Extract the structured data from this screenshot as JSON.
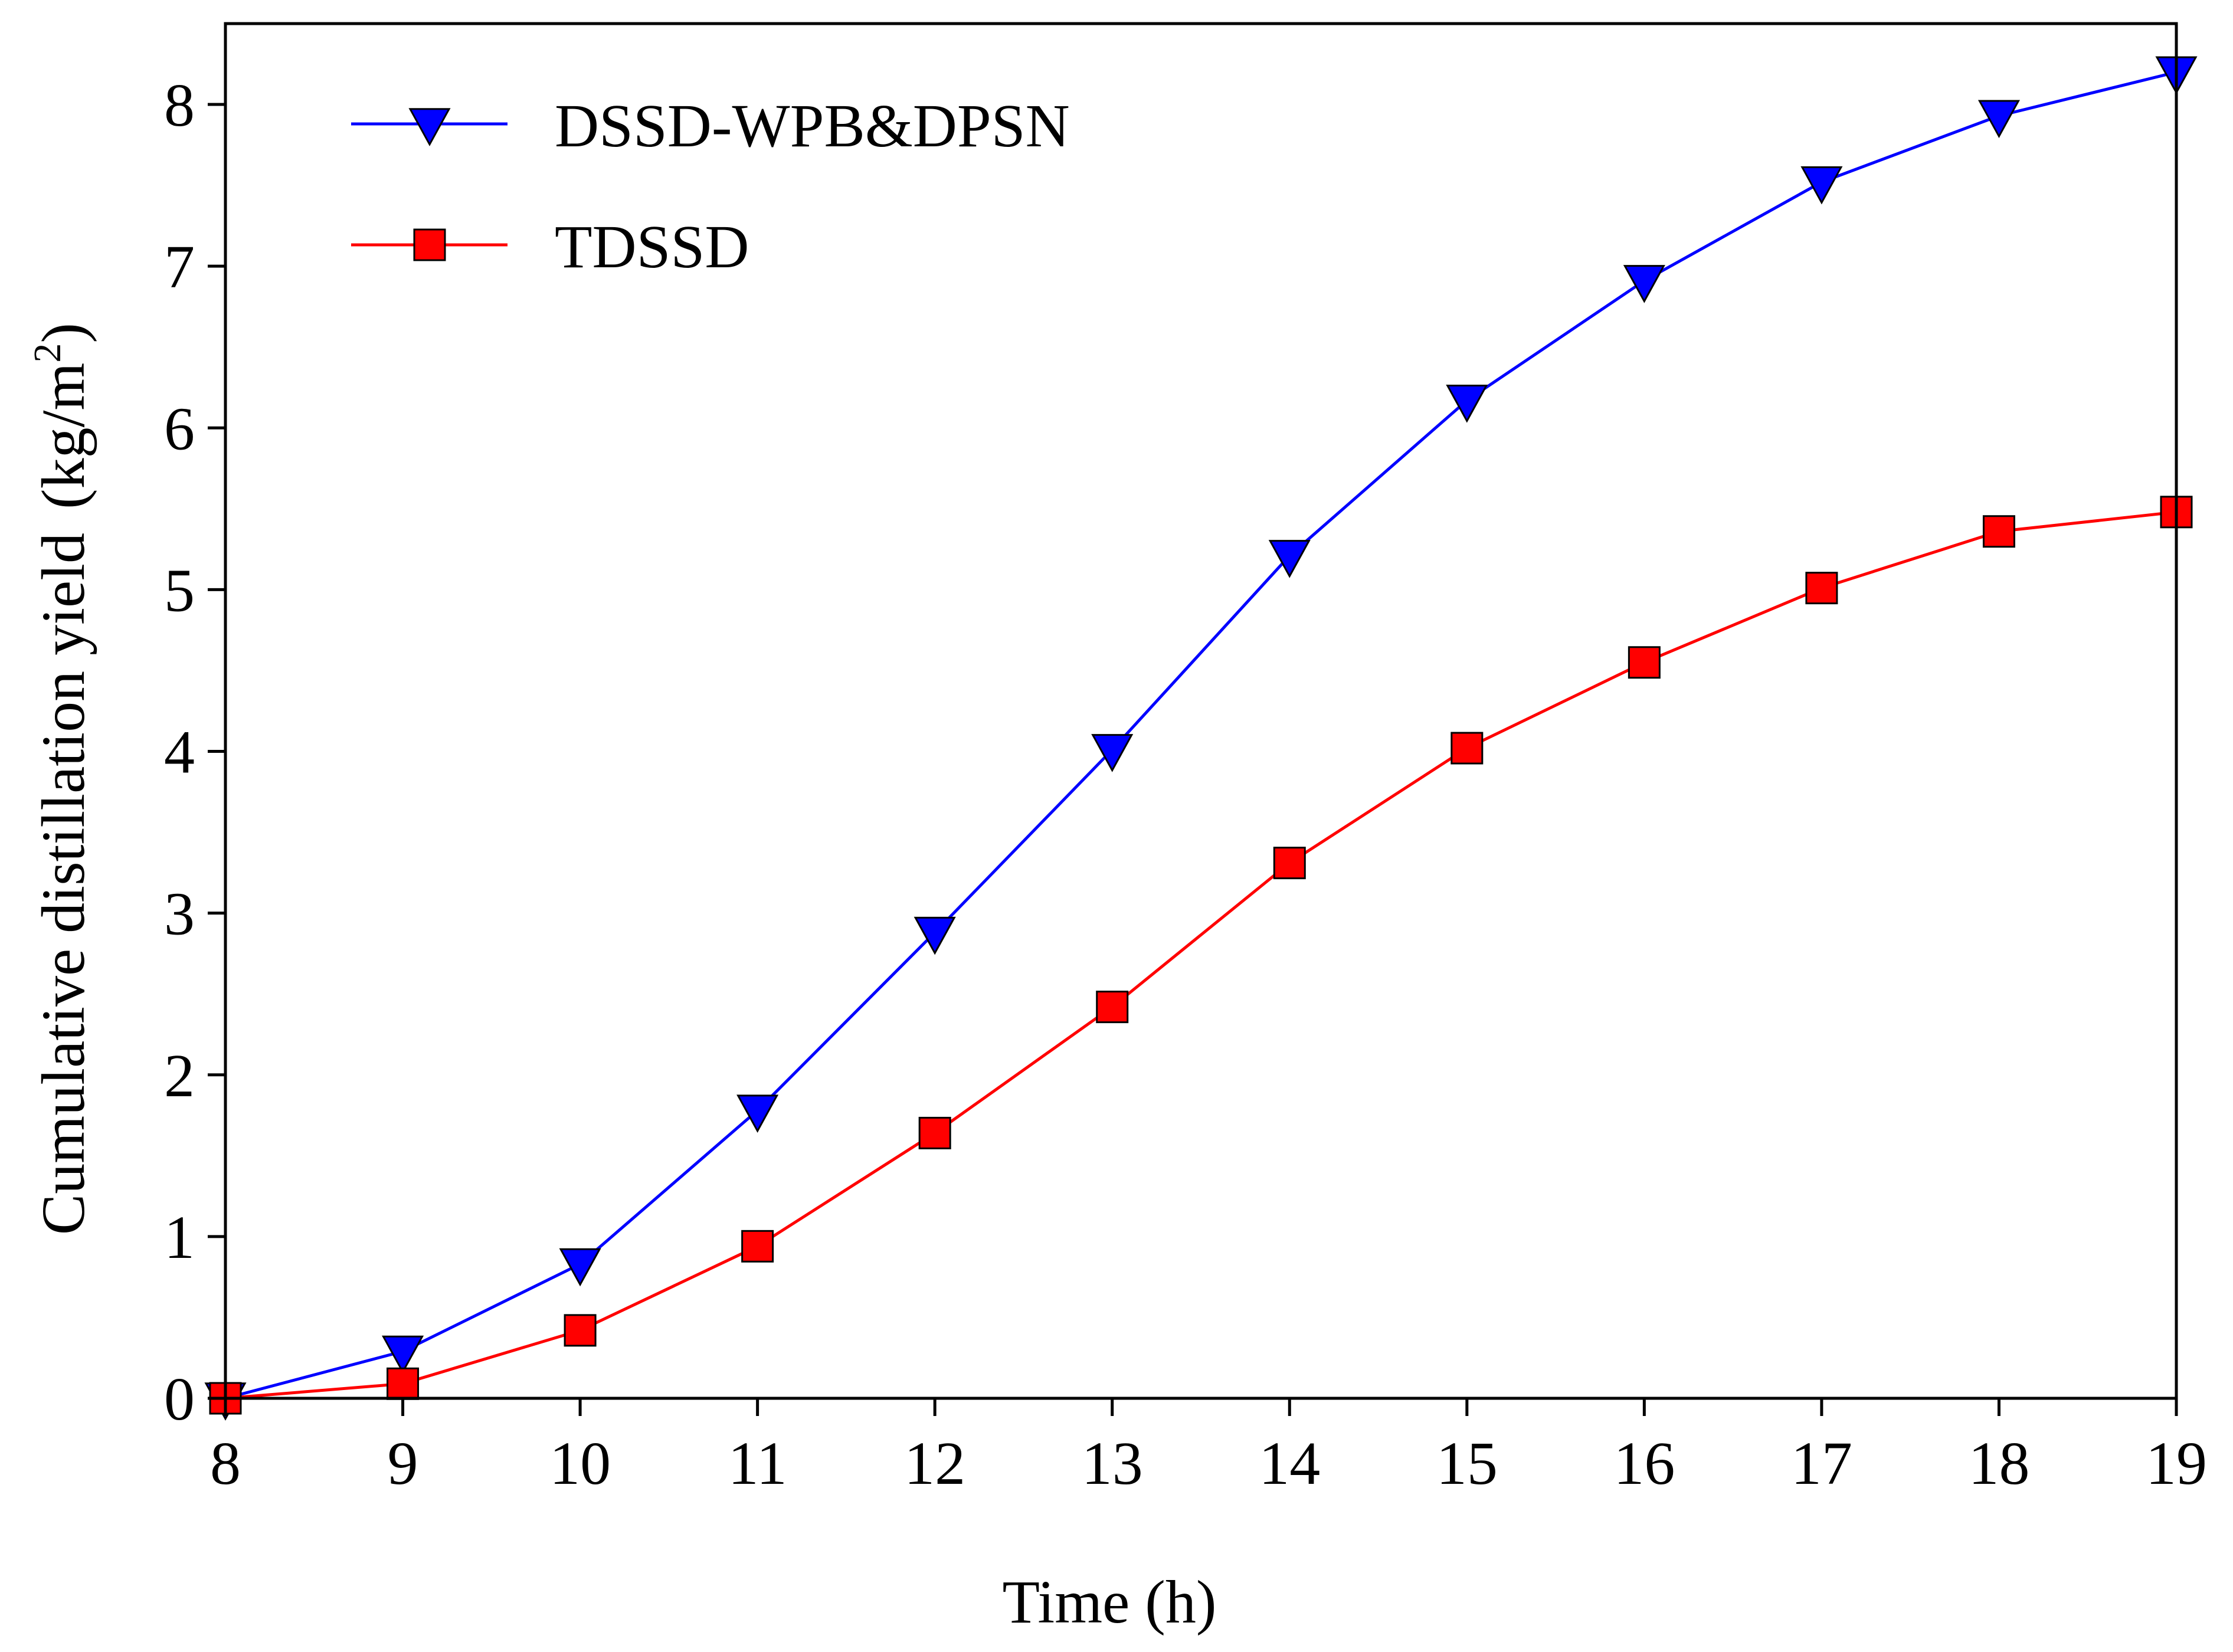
{
  "chart_data": {
    "type": "line",
    "title": "",
    "xlabel": "Time (h)",
    "ylabel": "Cumulative distillation yield",
    "ylabel_unit_prefix": "(kg/m",
    "ylabel_unit_sup": "2",
    "ylabel_unit_suffix": ")",
    "x": [
      8,
      9,
      10,
      11,
      12,
      13,
      14,
      15,
      16,
      17,
      18,
      19
    ],
    "xlim": [
      8,
      19
    ],
    "ylim": [
      0,
      8.5
    ],
    "xticks": [
      "8",
      "9",
      "10",
      "11",
      "12",
      "13",
      "14",
      "15",
      "16",
      "17",
      "18",
      "19"
    ],
    "yticks": [
      "0",
      "1",
      "2",
      "3",
      "4",
      "5",
      "6",
      "7",
      "8"
    ],
    "grid": false,
    "legend_position": "top-left",
    "series": [
      {
        "name": "DSSD-WPB&DPSN",
        "marker": "triangle-down",
        "color": "#0000ff",
        "values": [
          0.0,
          0.29,
          0.83,
          1.78,
          2.88,
          4.01,
          5.21,
          6.17,
          6.91,
          7.52,
          7.93,
          8.2
        ]
      },
      {
        "name": "TDSSD",
        "marker": "square",
        "color": "#ff0000",
        "values": [
          0.0,
          0.09,
          0.42,
          0.94,
          1.64,
          2.42,
          3.31,
          4.02,
          4.55,
          5.01,
          5.36,
          5.48
        ]
      }
    ]
  }
}
